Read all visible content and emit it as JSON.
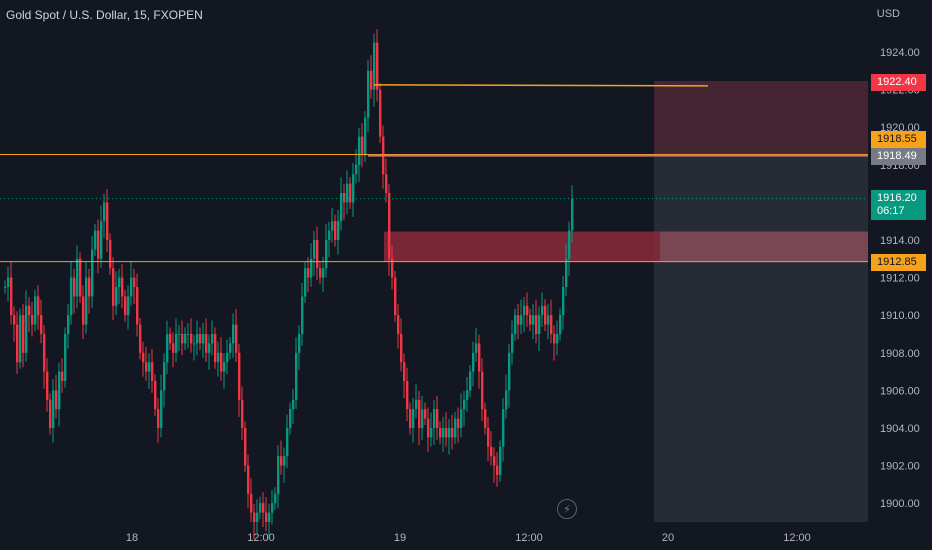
{
  "header": {
    "title": "Gold Spot / U.S. Dollar, 15, FXOPEN",
    "currency": "USD"
  },
  "price_tags": {
    "top_red": "1922.40",
    "orange_upper": "1918.55",
    "grey": "1918.49",
    "current_price": "1916.20",
    "countdown": "06:17",
    "orange_lower": "1912.85"
  },
  "colors": {
    "background": "#131722",
    "up": "#089981",
    "down": "#f23645",
    "level": "#f7a21b",
    "grid_text": "#b2b5be"
  },
  "icons": {
    "replay": "lightning-icon"
  },
  "chart_data": {
    "type": "candlestick",
    "title": "Gold Spot / U.S. Dollar, 15, FXOPEN",
    "ylabel": "USD",
    "ylim": [
      1898.7,
      1926.5
    ],
    "y_ticks": [
      "1924.00",
      "1922.00",
      "1920.00",
      "1918.00",
      "1916.00",
      "1914.00",
      "1912.00",
      "1910.00",
      "1908.00",
      "1906.00",
      "1904.00",
      "1902.00",
      "1900.00"
    ],
    "x_ticks": [
      "18",
      "12:00",
      "19",
      "12:00",
      "20",
      "12:00"
    ],
    "horizontal_levels": [
      1918.55,
      1912.85
    ],
    "ray_level": 1922.2,
    "zone": {
      "top": 1914.45,
      "bottom": 1912.85
    },
    "current_price": 1916.2,
    "close_path": [
      [
        0,
        1911.5
      ],
      [
        3,
        1912
      ],
      [
        6,
        1910
      ],
      [
        9,
        1909.5
      ],
      [
        12,
        1907.5
      ],
      [
        15,
        1910
      ],
      [
        18,
        1908
      ],
      [
        21,
        1910.5
      ],
      [
        24,
        1910
      ],
      [
        27,
        1909.5
      ],
      [
        30,
        1911
      ],
      [
        33,
        1910
      ],
      [
        36,
        1909
      ],
      [
        39,
        1907
      ],
      [
        42,
        1905.5
      ],
      [
        45,
        1904
      ],
      [
        48,
        1906
      ],
      [
        51,
        1905
      ],
      [
        54,
        1907
      ],
      [
        57,
        1906.5
      ],
      [
        60,
        1909
      ],
      [
        63,
        1910
      ],
      [
        66,
        1912
      ],
      [
        69,
        1911
      ],
      [
        72,
        1913
      ],
      [
        75,
        1911
      ],
      [
        78,
        1909.5
      ],
      [
        81,
        1912
      ],
      [
        84,
        1911
      ],
      [
        87,
        1913.5
      ],
      [
        90,
        1914.5
      ],
      [
        93,
        1913
      ],
      [
        96,
        1915
      ],
      [
        99,
        1916
      ],
      [
        102,
        1914
      ],
      [
        105,
        1912.5
      ],
      [
        108,
        1910.5
      ],
      [
        111,
        1911.5
      ],
      [
        114,
        1912
      ],
      [
        117,
        1911
      ],
      [
        120,
        1910
      ],
      [
        123,
        1911
      ],
      [
        126,
        1912
      ],
      [
        129,
        1911.5
      ],
      [
        132,
        1909.5
      ],
      [
        135,
        1908
      ],
      [
        138,
        1907.5
      ],
      [
        141,
        1907
      ],
      [
        144,
        1907.5
      ],
      [
        147,
        1906.5
      ],
      [
        150,
        1905
      ],
      [
        153,
        1904
      ],
      [
        156,
        1906
      ],
      [
        159,
        1907.5
      ],
      [
        162,
        1909
      ],
      [
        165,
        1908.5
      ],
      [
        168,
        1908
      ],
      [
        171,
        1909
      ],
      [
        174,
        1909
      ],
      [
        177,
        1908.5
      ],
      [
        180,
        1909
      ],
      [
        183,
        1909
      ],
      [
        186,
        1908.5
      ],
      [
        189,
        1908.5
      ],
      [
        192,
        1909
      ],
      [
        195,
        1908.5
      ],
      [
        198,
        1909
      ],
      [
        201,
        1908
      ],
      [
        204,
        1908.5
      ],
      [
        207,
        1909
      ],
      [
        210,
        1907.5
      ],
      [
        213,
        1908
      ],
      [
        216,
        1907
      ],
      [
        219,
        1907.5
      ],
      [
        222,
        1908
      ],
      [
        225,
        1908.5
      ],
      [
        228,
        1909.5
      ],
      [
        231,
        1908
      ],
      [
        234,
        1905.5
      ],
      [
        237,
        1904
      ],
      [
        240,
        1902
      ],
      [
        243,
        1900.5
      ],
      [
        246,
        1899.5
      ],
      [
        249,
        1899
      ],
      [
        252,
        1899.5
      ],
      [
        255,
        1900
      ],
      [
        258,
        1899.5
      ],
      [
        261,
        1899
      ],
      [
        264,
        1899.5
      ],
      [
        267,
        1900
      ],
      [
        270,
        1900.5
      ],
      [
        273,
        1902.5
      ],
      [
        276,
        1902
      ],
      [
        279,
        1902.5
      ],
      [
        282,
        1904
      ],
      [
        285,
        1905
      ],
      [
        288,
        1905.5
      ],
      [
        291,
        1908
      ],
      [
        294,
        1909
      ],
      [
        297,
        1911
      ],
      [
        300,
        1912.5
      ],
      [
        303,
        1912
      ],
      [
        306,
        1913
      ],
      [
        309,
        1914
      ],
      [
        312,
        1912.5
      ],
      [
        315,
        1912
      ],
      [
        318,
        1912.5
      ],
      [
        321,
        1914
      ],
      [
        324,
        1914.5
      ],
      [
        327,
        1915
      ],
      [
        330,
        1914
      ],
      [
        333,
        1915
      ],
      [
        336,
        1916.5
      ],
      [
        339,
        1916
      ],
      [
        342,
        1917
      ],
      [
        345,
        1916
      ],
      [
        348,
        1917.5
      ],
      [
        351,
        1918
      ],
      [
        354,
        1919.5
      ],
      [
        357,
        1918.5
      ],
      [
        360,
        1920.5
      ],
      [
        363,
        1923
      ],
      [
        366,
        1922
      ],
      [
        369,
        1924.5
      ],
      [
        372,
        1922
      ],
      [
        375,
        1919.5
      ],
      [
        378,
        1917.5
      ],
      [
        381,
        1916.5
      ],
      [
        384,
        1913
      ],
      [
        387,
        1912
      ],
      [
        390,
        1910
      ],
      [
        393,
        1909
      ],
      [
        396,
        1907.5
      ],
      [
        399,
        1906.5
      ],
      [
        402,
        1905
      ],
      [
        405,
        1904
      ],
      [
        408,
        1905
      ],
      [
        411,
        1905.5
      ],
      [
        414,
        1904
      ],
      [
        417,
        1905
      ],
      [
        420,
        1904.5
      ],
      [
        423,
        1903.5
      ],
      [
        426,
        1904
      ],
      [
        429,
        1905
      ],
      [
        432,
        1904
      ],
      [
        435,
        1903.5
      ],
      [
        438,
        1904
      ],
      [
        441,
        1903.5
      ],
      [
        444,
        1904
      ],
      [
        447,
        1903.5
      ],
      [
        450,
        1904.5
      ],
      [
        453,
        1904
      ],
      [
        456,
        1905
      ],
      [
        459,
        1905.5
      ],
      [
        462,
        1906
      ],
      [
        465,
        1907
      ],
      [
        468,
        1908
      ],
      [
        471,
        1908.5
      ],
      [
        474,
        1907
      ],
      [
        477,
        1905
      ],
      [
        480,
        1904
      ],
      [
        483,
        1903
      ],
      [
        486,
        1902.5
      ],
      [
        489,
        1902
      ],
      [
        492,
        1901.5
      ],
      [
        495,
        1903
      ],
      [
        498,
        1905
      ],
      [
        501,
        1906
      ],
      [
        504,
        1908
      ],
      [
        507,
        1909
      ],
      [
        510,
        1910
      ],
      [
        513,
        1909.5
      ],
      [
        516,
        1910
      ],
      [
        519,
        1910.5
      ],
      [
        522,
        1910
      ],
      [
        525,
        1909.5
      ],
      [
        528,
        1910
      ],
      [
        531,
        1909
      ],
      [
        534,
        1910
      ],
      [
        537,
        1910.5
      ],
      [
        540,
        1909.5
      ],
      [
        543,
        1910
      ],
      [
        546,
        1909
      ],
      [
        549,
        1908.5
      ],
      [
        552,
        1909
      ],
      [
        555,
        1910
      ],
      [
        558,
        1911.5
      ],
      [
        561,
        1913
      ],
      [
        564,
        1914.5
      ],
      [
        567,
        1916.2
      ]
    ]
  }
}
